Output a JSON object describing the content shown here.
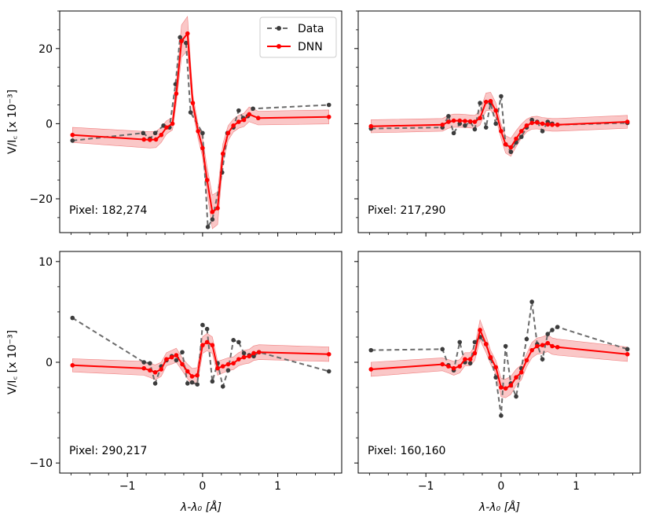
{
  "legend": {
    "data_label": "Data",
    "dnn_label": "DNN"
  },
  "colors": {
    "data": "#6b6b6b",
    "data_marker": "#3c3c3c",
    "dnn": "#ff0000",
    "band": "#f8b4b4"
  },
  "xlabel": "λ-λ₀ [Å]",
  "ylabel": "V/I꜀ [x 10⁻³]",
  "chart_data": [
    {
      "type": "line",
      "pixel_label": "Pixel: 182,274",
      "xlim": [
        -1.9,
        1.85
      ],
      "ylim": [
        -29,
        30
      ],
      "yticks": [
        -20,
        0,
        20
      ],
      "xticks": [
        -1,
        0,
        1
      ],
      "series": [
        {
          "name": "Data",
          "x": [
            -1.73,
            -0.79,
            -0.7,
            -0.63,
            -0.52,
            -0.44,
            -0.36,
            -0.3,
            -0.22,
            -0.16,
            0.0,
            0.07,
            0.13,
            0.26,
            0.33,
            0.41,
            0.48,
            0.54,
            0.6,
            0.67,
            1.68
          ],
          "y": [
            -4.5,
            -2.5,
            -4.0,
            -2.5,
            -0.5,
            -1.0,
            10.5,
            23.0,
            21.5,
            3.0,
            -2.5,
            -27.5,
            -25.5,
            -13.0,
            -2.5,
            -1.0,
            3.5,
            1.5,
            2.0,
            4.0,
            5.0
          ]
        },
        {
          "name": "DNN",
          "x": [
            -1.73,
            -0.78,
            -0.7,
            -0.62,
            -0.55,
            -0.48,
            -0.4,
            -0.35,
            -0.28,
            -0.2,
            -0.13,
            -0.06,
            0.0,
            0.06,
            0.13,
            0.2,
            0.27,
            0.34,
            0.41,
            0.48,
            0.55,
            0.62,
            0.74,
            1.68
          ],
          "y": [
            -3.0,
            -4.2,
            -4.3,
            -4.2,
            -3.0,
            -1.0,
            0.0,
            8.0,
            22.0,
            24.0,
            5.5,
            -2.0,
            -6.5,
            -15.0,
            -23.5,
            -22.5,
            -8.0,
            -2.5,
            -0.5,
            0.5,
            1.0,
            2.5,
            1.5,
            1.8
          ]
        }
      ]
    },
    {
      "type": "line",
      "pixel_label": "Pixel: 217,290",
      "xlim": [
        -1.9,
        1.85
      ],
      "ylim": [
        -29,
        30
      ],
      "yticks": [
        -20,
        0,
        20
      ],
      "xticks": [
        -1,
        0,
        1
      ],
      "series": [
        {
          "name": "Data",
          "x": [
            -1.73,
            -0.78,
            -0.7,
            -0.63,
            -0.55,
            -0.48,
            -0.41,
            -0.35,
            -0.28,
            -0.2,
            -0.14,
            -0.07,
            0.0,
            0.06,
            0.13,
            0.2,
            0.27,
            0.34,
            0.41,
            0.48,
            0.55,
            0.62,
            0.68,
            0.75,
            1.68
          ],
          "y": [
            -1.3,
            -1.0,
            2.0,
            -2.5,
            0.0,
            -0.5,
            0.5,
            -1.5,
            5.5,
            -1.0,
            5.5,
            0.0,
            7.3,
            -5.5,
            -7.5,
            -5.0,
            -3.5,
            -1.0,
            1.0,
            0.5,
            -2.0,
            0.5,
            0.0,
            -0.3,
            0.2
          ]
        },
        {
          "name": "DNN",
          "x": [
            -1.73,
            -0.78,
            -0.7,
            -0.63,
            -0.55,
            -0.48,
            -0.41,
            -0.35,
            -0.28,
            -0.2,
            -0.14,
            -0.07,
            0.0,
            0.06,
            0.13,
            0.2,
            0.27,
            0.34,
            0.41,
            0.48,
            0.55,
            0.62,
            0.68,
            0.75,
            1.68
          ],
          "y": [
            -0.7,
            -0.3,
            0.5,
            0.8,
            0.8,
            0.7,
            0.6,
            0.5,
            1.5,
            5.8,
            6.0,
            3.5,
            -2.0,
            -5.5,
            -6.3,
            -4.0,
            -2.0,
            -0.5,
            0.2,
            0.3,
            0.0,
            -0.2,
            -0.3,
            -0.3,
            0.5
          ]
        }
      ]
    },
    {
      "type": "line",
      "pixel_label": "Pixel: 290,217",
      "xlim": [
        -1.9,
        1.85
      ],
      "ylim": [
        -11,
        11
      ],
      "yticks": [
        -10,
        0,
        10
      ],
      "xticks": [
        -1,
        0,
        1
      ],
      "series": [
        {
          "name": "Data",
          "x": [
            -1.73,
            -0.78,
            -0.7,
            -0.63,
            -0.55,
            -0.48,
            -0.41,
            -0.35,
            -0.27,
            -0.2,
            -0.14,
            -0.07,
            0.0,
            0.06,
            0.13,
            0.2,
            0.27,
            0.34,
            0.41,
            0.48,
            0.55,
            0.62,
            0.68,
            0.75,
            1.68
          ],
          "y": [
            4.4,
            0.0,
            -0.1,
            -2.1,
            -0.4,
            0.2,
            0.6,
            0.2,
            1.0,
            -2.1,
            -2.0,
            -2.2,
            3.7,
            3.3,
            -1.9,
            -0.1,
            -2.4,
            -0.8,
            2.2,
            2.0,
            0.9,
            0.7,
            0.6,
            1.0,
            -0.9
          ]
        },
        {
          "name": "DNN",
          "x": [
            -1.73,
            -0.78,
            -0.7,
            -0.63,
            -0.55,
            -0.48,
            -0.41,
            -0.35,
            -0.27,
            -0.2,
            -0.14,
            -0.07,
            0.0,
            0.06,
            0.13,
            0.2,
            0.27,
            0.34,
            0.41,
            0.48,
            0.55,
            0.62,
            0.68,
            0.75,
            1.68
          ],
          "y": [
            -0.3,
            -0.6,
            -0.8,
            -1.0,
            -0.7,
            0.3,
            0.5,
            0.7,
            -0.2,
            -0.9,
            -1.4,
            -1.3,
            1.7,
            2.0,
            1.7,
            -0.6,
            -0.4,
            -0.2,
            -0.1,
            0.3,
            0.5,
            0.6,
            0.9,
            1.0,
            0.8
          ]
        }
      ]
    },
    {
      "type": "line",
      "pixel_label": "Pixel: 160,160",
      "xlim": [
        -1.9,
        1.85
      ],
      "ylim": [
        -11,
        11
      ],
      "yticks": [
        -10,
        0,
        10
      ],
      "xticks": [
        -1,
        0,
        1
      ],
      "series": [
        {
          "name": "Data",
          "x": [
            -1.73,
            -0.78,
            -0.7,
            -0.63,
            -0.55,
            -0.48,
            -0.41,
            -0.35,
            -0.28,
            -0.2,
            -0.14,
            -0.07,
            0.0,
            0.06,
            0.13,
            0.2,
            0.27,
            0.34,
            0.41,
            0.48,
            0.55,
            0.62,
            0.68,
            0.75,
            1.68
          ],
          "y": [
            1.2,
            1.3,
            -0.3,
            -0.8,
            2.0,
            0.0,
            -0.1,
            2.0,
            2.5,
            1.8,
            0.4,
            -1.5,
            -5.3,
            1.6,
            -2.1,
            -3.4,
            -0.6,
            2.3,
            6.0,
            1.8,
            0.3,
            2.8,
            3.2,
            3.5,
            1.3
          ]
        },
        {
          "name": "DNN",
          "x": [
            -1.73,
            -0.78,
            -0.7,
            -0.63,
            -0.55,
            -0.48,
            -0.41,
            -0.35,
            -0.28,
            -0.2,
            -0.14,
            -0.07,
            0.0,
            0.06,
            0.13,
            0.2,
            0.27,
            0.34,
            0.41,
            0.48,
            0.55,
            0.62,
            0.68,
            0.75,
            1.68
          ],
          "y": [
            -0.7,
            -0.2,
            -0.4,
            -0.6,
            -0.4,
            0.3,
            0.3,
            0.9,
            3.2,
            1.8,
            0.5,
            -0.5,
            -2.5,
            -2.6,
            -2.3,
            -1.5,
            -1.0,
            0.2,
            1.2,
            1.6,
            1.7,
            1.9,
            1.6,
            1.5,
            0.8
          ]
        }
      ]
    }
  ]
}
